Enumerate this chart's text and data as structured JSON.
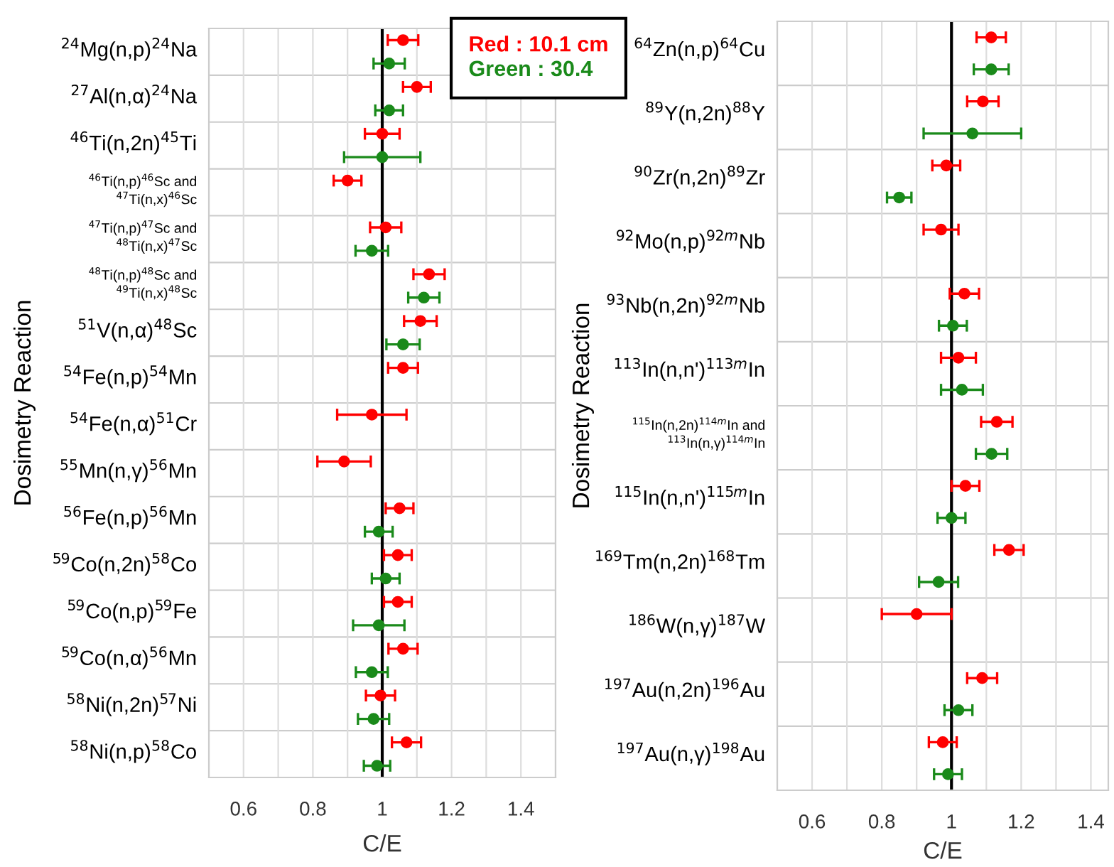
{
  "chart_data": [
    {
      "type": "scatter",
      "orientation": "horizontal",
      "xlabel": "C/E",
      "ylabel": "Dosimetry Reaction",
      "marker": "circle",
      "grid": true,
      "legend": "top right",
      "categories": [
        "$^{24}$Mg(n,p)$^{24}$Na",
        "$^{27}$Al(n,α)$^{24}$Na",
        "$^{46}$Ti(n,2n)$^{45}$Ti",
        "$^{46}$Ti(n,p)$^{46}$Sc and\n$^{47}$Ti(n,x)$^{46}$Sc",
        "$^{47}$Ti(n,p)$^{47}$Sc and\n$^{48}$Ti(n,x)$^{47}$Sc",
        "$^{48}$Ti(n,p)$^{48}$Sc and\n$^{49}$Ti(n,x)$^{48}$Sc",
        "$^{51}$V(n,α)$^{48}$Sc",
        "$^{54}$Fe(n,p)$^{54}$Mn",
        "$^{54}$Fe(n,α)$^{51}$Cr",
        "$^{55}$Mn(n,γ)$^{56}$Mn",
        "$^{56}$Fe(n,p)$^{56}$Mn",
        "$^{59}$Co(n,2n)$^{58}$Co",
        "$^{59}$Co(n,p)$^{59}$Fe",
        "$^{59}$Co(n,α)$^{56}$Mn",
        "$^{58}$Ni(n,2n)$^{57}$Ni",
        "$^{58}$Ni(n,p)$^{58}$Co"
      ],
      "series": [
        {
          "name": "Red : 10.1 cm",
          "color": "#ff0000",
          "values": [
            1.06,
            1.1,
            1.0,
            0.9,
            1.01,
            1.135,
            1.11,
            1.06,
            0.97,
            0.89,
            1.05,
            1.045,
            1.045,
            1.06,
            0.995,
            1.07
          ],
          "errors": [
            0.044,
            0.04,
            0.05,
            0.04,
            0.045,
            0.045,
            0.047,
            0.043,
            0.1,
            0.077,
            0.04,
            0.04,
            0.04,
            0.042,
            0.042,
            0.042
          ]
        },
        {
          "name": "Green : 30.4",
          "color": "#1a8a1a",
          "values": [
            1.02,
            1.02,
            1.0,
            null,
            0.97,
            1.12,
            1.06,
            null,
            null,
            null,
            0.99,
            1.01,
            0.99,
            0.97,
            0.975,
            0.985
          ],
          "errors": [
            0.045,
            0.04,
            0.11,
            null,
            0.047,
            0.045,
            0.048,
            null,
            null,
            null,
            0.04,
            0.04,
            0.074,
            0.046,
            0.045,
            0.038
          ]
        }
      ],
      "xlim": [
        0.5,
        1.5
      ],
      "xticks": [
        {
          "value": 0.5,
          "label": null
        },
        0.6,
        {
          "value": 0.7,
          "label": null
        },
        0.8,
        {
          "value": 0.9,
          "label": null
        },
        {
          "value": 1.0,
          "label": "1"
        },
        {
          "value": 1.1,
          "label": null
        },
        1.2,
        {
          "value": 1.3,
          "label": null
        },
        1.4,
        {
          "value": 1.5,
          "label": null
        }
      ],
      "ref_lines": [
        {
          "axis": "x",
          "value": 1,
          "color": "#000000"
        }
      ]
    },
    {
      "type": "scatter",
      "orientation": "horizontal",
      "xlabel": "C/E",
      "ylabel": "Dosimetry Reaction",
      "marker": "circle",
      "grid": true,
      "categories": [
        "$^{64}$Zn(n,p)$^{64}$Cu",
        "$^{89}$Y(n,2n)$^{88}$Y",
        "$^{90}$Zr(n,2n)$^{89}$Zr",
        "$^{92}$Mo(n,p)$^{92m}$Nb",
        "$^{93}$Nb(n,2n)$^{92m}$Nb",
        "$^{113}$In(n,n')$^{113m}$In",
        "$^{115}$In(n,2n)$^{114m}$In and\n$^{113}$In(n,γ)$^{114m}$In",
        "$^{115}$In(n,n')$^{115m}$In",
        "$^{169}$Tm(n,2n)$^{168}$Tm",
        "$^{186}$W(n,γ)$^{187}$W",
        "$^{197}$Au(n,2n)$^{196}$Au",
        "$^{197}$Au(n,γ)$^{198}$Au"
      ],
      "series": [
        {
          "color": "#ff0000",
          "values": [
            1.114,
            1.09,
            0.985,
            0.97,
            1.037,
            1.02,
            1.13,
            1.04,
            1.165,
            0.9,
            1.088,
            0.975
          ],
          "errors": [
            0.042,
            0.045,
            0.04,
            0.05,
            0.042,
            0.05,
            0.045,
            0.04,
            0.042,
            0.1,
            0.043,
            0.04
          ]
        },
        {
          "color": "#1a8a1a",
          "values": [
            1.114,
            1.06,
            0.85,
            null,
            1.004,
            1.03,
            1.115,
            1.0,
            0.963,
            null,
            1.02,
            0.99
          ],
          "errors": [
            0.05,
            0.14,
            0.035,
            null,
            0.04,
            0.06,
            0.045,
            0.04,
            0.056,
            null,
            0.04,
            0.04
          ]
        }
      ],
      "xlim": [
        0.5,
        1.45
      ],
      "xticks": [
        {
          "value": 0.5,
          "label": null
        },
        0.6,
        {
          "value": 0.7,
          "label": null
        },
        0.8,
        {
          "value": 0.9,
          "label": null
        },
        {
          "value": 1.0,
          "label": "1"
        },
        {
          "value": 1.1,
          "label": null
        },
        1.2,
        {
          "value": 1.3,
          "label": null
        },
        1.4
      ],
      "ref_lines": [
        {
          "axis": "x",
          "value": 1,
          "color": "#000000"
        }
      ]
    }
  ]
}
